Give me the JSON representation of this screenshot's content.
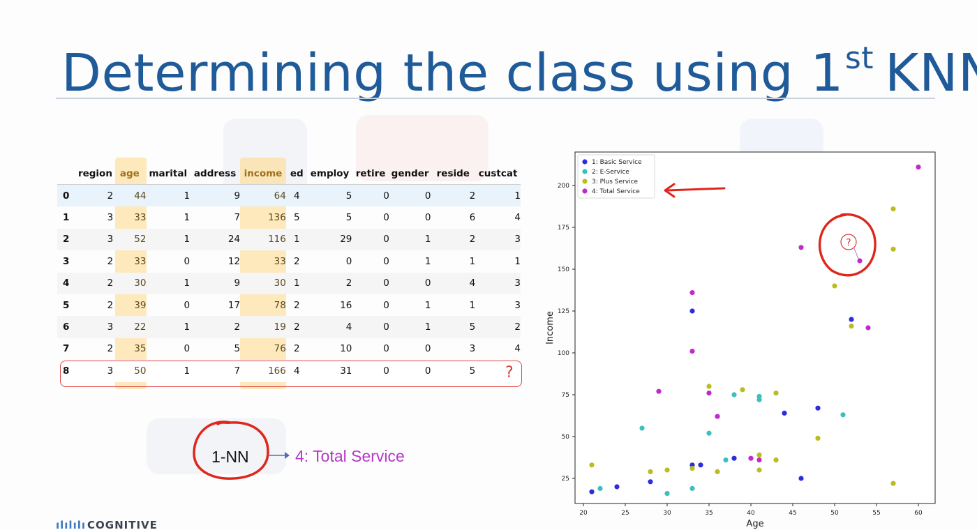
{
  "slide": {
    "title": "Determining the class using 1",
    "title_sup": "st",
    "title_suffix": "KNN",
    "logo_mark": "ılılılı",
    "logo_text": "COGNITIVE"
  },
  "table": {
    "headers": [
      "",
      "region",
      "age",
      "marital",
      "address",
      "income",
      "ed",
      "employ",
      "retire",
      "gender",
      "reside",
      "custcat"
    ],
    "rows": [
      [
        "0",
        "2",
        "44",
        "1",
        "9",
        "64",
        "4",
        "5",
        "0",
        "0",
        "2",
        "1"
      ],
      [
        "1",
        "3",
        "33",
        "1",
        "7",
        "136",
        "5",
        "5",
        "0",
        "0",
        "6",
        "4"
      ],
      [
        "2",
        "3",
        "52",
        "1",
        "24",
        "116",
        "1",
        "29",
        "0",
        "1",
        "2",
        "3"
      ],
      [
        "3",
        "2",
        "33",
        "0",
        "12",
        "33",
        "2",
        "0",
        "0",
        "1",
        "1",
        "1"
      ],
      [
        "4",
        "2",
        "30",
        "1",
        "9",
        "30",
        "1",
        "2",
        "0",
        "0",
        "4",
        "3"
      ],
      [
        "5",
        "2",
        "39",
        "0",
        "17",
        "78",
        "2",
        "16",
        "0",
        "1",
        "1",
        "3"
      ],
      [
        "6",
        "3",
        "22",
        "1",
        "2",
        "19",
        "2",
        "4",
        "0",
        "1",
        "5",
        "2"
      ],
      [
        "7",
        "2",
        "35",
        "0",
        "5",
        "76",
        "2",
        "10",
        "0",
        "0",
        "3",
        "4"
      ],
      [
        "8",
        "3",
        "50",
        "1",
        "7",
        "166",
        "4",
        "31",
        "0",
        "0",
        "5",
        ""
      ]
    ],
    "highlighted_columns": [
      "age",
      "income"
    ],
    "query_mark": "?"
  },
  "annotation": {
    "nn_label": "1-NN",
    "result_label": "4: Total Service",
    "result_color": "#b437c4",
    "circle_color": "#e0251b"
  },
  "chart_data": {
    "type": "scatter",
    "xlabel": "Age",
    "ylabel": "Income",
    "xlim": [
      19,
      62
    ],
    "ylim": [
      10,
      220
    ],
    "xticks": [
      20,
      25,
      30,
      35,
      40,
      45,
      50,
      55,
      60
    ],
    "yticks": [
      25,
      50,
      75,
      100,
      125,
      150,
      175,
      200
    ],
    "grid": false,
    "legend_position": "top-left",
    "series": [
      {
        "name": "1: Basic Service",
        "color": "#2c2ce0",
        "points": [
          [
            21,
            17
          ],
          [
            24,
            20
          ],
          [
            28,
            23
          ],
          [
            33,
            125
          ],
          [
            33,
            33
          ],
          [
            34,
            33
          ],
          [
            38,
            37
          ],
          [
            44,
            64
          ],
          [
            46,
            25
          ],
          [
            48,
            67
          ],
          [
            52,
            120
          ]
        ]
      },
      {
        "name": "2: E-Service",
        "color": "#3cbfc0",
        "points": [
          [
            22,
            19
          ],
          [
            27,
            55
          ],
          [
            30,
            16
          ],
          [
            33,
            19
          ],
          [
            35,
            52
          ],
          [
            37,
            36
          ],
          [
            38,
            75
          ],
          [
            41,
            74
          ],
          [
            41,
            72
          ],
          [
            51,
            63
          ]
        ]
      },
      {
        "name": "3: Plus Service",
        "color": "#bcbc1e",
        "points": [
          [
            21,
            33
          ],
          [
            28,
            29
          ],
          [
            30,
            30
          ],
          [
            33,
            31
          ],
          [
            35,
            80
          ],
          [
            36,
            29
          ],
          [
            39,
            78
          ],
          [
            41,
            39
          ],
          [
            41,
            30
          ],
          [
            43,
            76
          ],
          [
            43,
            36
          ],
          [
            48,
            49
          ],
          [
            50,
            140
          ],
          [
            52,
            116
          ],
          [
            57,
            186
          ],
          [
            57,
            162
          ],
          [
            57,
            22
          ]
        ]
      },
      {
        "name": "4: Total Service",
        "color": "#bf2bc9",
        "points": [
          [
            29,
            77
          ],
          [
            33,
            136
          ],
          [
            33,
            101
          ],
          [
            35,
            76
          ],
          [
            36,
            62
          ],
          [
            40,
            37
          ],
          [
            41,
            36
          ],
          [
            46,
            163
          ],
          [
            54,
            115
          ],
          [
            60,
            211
          ]
        ]
      }
    ],
    "query_point": [
      53,
      155
    ],
    "query_label": "?"
  }
}
